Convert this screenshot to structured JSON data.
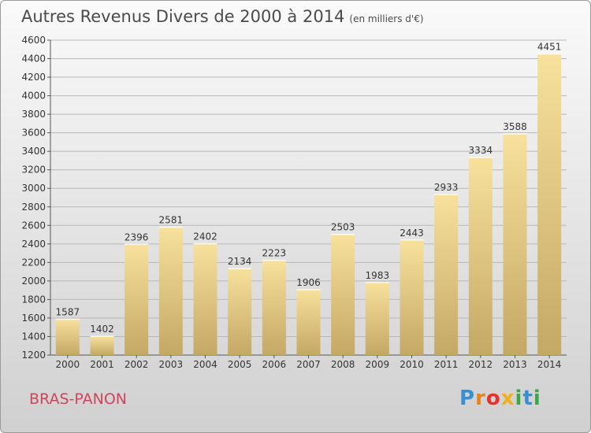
{
  "header": {
    "title": "Autres Revenus Divers de 2000 à 2014",
    "unit": "(en milliers d'€)"
  },
  "footer": {
    "town": "BRAS-PANON",
    "logo_text": "Proxiti",
    "logo_colors": [
      "#3a8fd0",
      "#e8821a",
      "#e8302c",
      "#f0b020",
      "#3aa84a",
      "#3a8fd0",
      "#3aa84a"
    ]
  },
  "chart_data": {
    "type": "bar",
    "title": "Autres Revenus Divers de 2000 à 2014",
    "subtitle": "(en milliers d'€)",
    "categories": [
      "2000",
      "2001",
      "2002",
      "2003",
      "2004",
      "2005",
      "2006",
      "2007",
      "2008",
      "2009",
      "2010",
      "2011",
      "2012",
      "2013",
      "2014"
    ],
    "values": [
      1587,
      1402,
      2396,
      2581,
      2402,
      2134,
      2223,
      1906,
      2503,
      1983,
      2443,
      2933,
      3334,
      3588,
      4451
    ],
    "ylim": [
      1200,
      4600
    ],
    "yticks": [
      1200,
      1400,
      1600,
      1800,
      2000,
      2200,
      2400,
      2600,
      2800,
      3000,
      3200,
      3400,
      3600,
      3800,
      4000,
      4200,
      4400,
      4600
    ],
    "grid": true,
    "bar_color_top": "#f7e19c",
    "bar_color_bottom": "#c4a865"
  }
}
